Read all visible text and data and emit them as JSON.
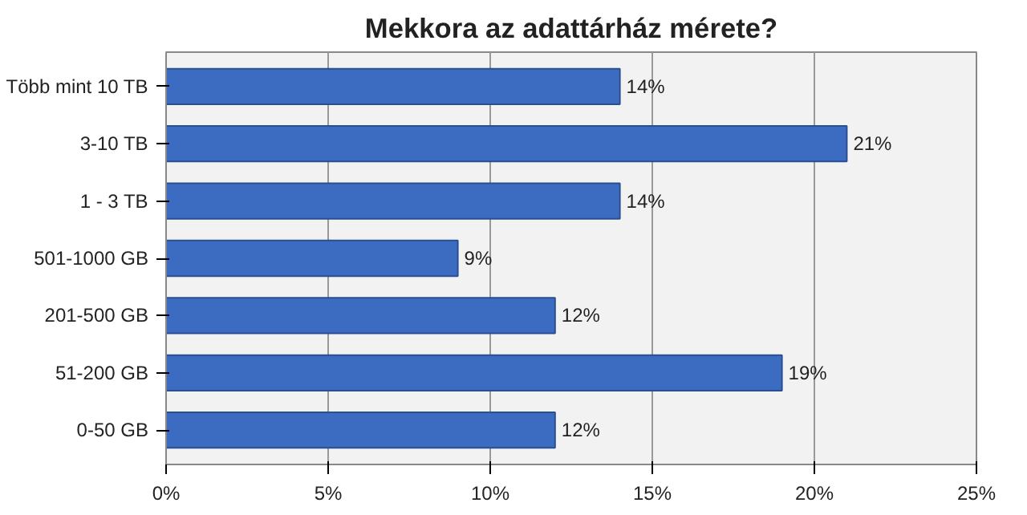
{
  "chart_data": {
    "type": "bar",
    "orientation": "horizontal",
    "title": "Mekkora az adattárház mérete?",
    "categories": [
      "Több mint 10 TB",
      "3-10 TB",
      "1 - 3 TB",
      "501-1000 GB",
      "201-500 GB",
      "51-200 GB",
      "0-50 GB"
    ],
    "values": [
      14,
      21,
      14,
      9,
      12,
      19,
      12
    ],
    "color": "#3b6cc2",
    "data_labels": true,
    "value_labels": [
      "14%",
      "21%",
      "14%",
      "9%",
      "12%",
      "19%",
      "12%"
    ],
    "xlim": [
      0,
      25
    ],
    "xticks": [
      {
        "value": 0,
        "label": "0%"
      },
      {
        "value": 5,
        "label": "5%"
      },
      {
        "value": 10,
        "label": "10%"
      },
      {
        "value": 15,
        "label": "15%"
      },
      {
        "value": 20,
        "label": "20%"
      },
      {
        "value": 25,
        "label": "25%"
      }
    ],
    "grid": "x"
  }
}
